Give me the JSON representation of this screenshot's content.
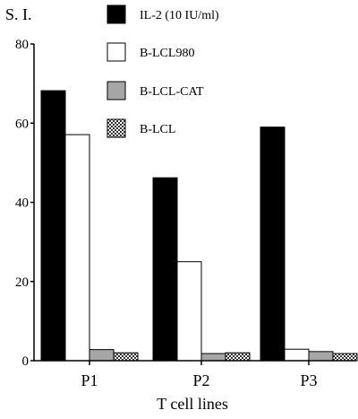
{
  "chart_data": {
    "type": "bar",
    "title": "",
    "ylabel": "S. I.",
    "xlabel": "T cell lines",
    "categories": [
      "P1",
      "P2",
      "P3"
    ],
    "ylim": [
      0,
      80
    ],
    "yticks": [
      0,
      20,
      40,
      60,
      80
    ],
    "grid": false,
    "legend_position": "top",
    "series": [
      {
        "name": "IL-2 (10 IU/ml)",
        "fill": "#000000",
        "pattern": "solid",
        "values": [
          68.2,
          46.2,
          59.0
        ]
      },
      {
        "name": "B-LCL980",
        "fill": "#ffffff",
        "pattern": "solid",
        "values": [
          57.1,
          25.0,
          2.9
        ]
      },
      {
        "name": "B-LCL-CAT",
        "fill": "#a6a6a6",
        "pattern": "solid",
        "values": [
          2.8,
          1.8,
          2.3
        ]
      },
      {
        "name": "B-LCL",
        "fill": "#ffffff",
        "pattern": "checker",
        "values": [
          2.0,
          2.0,
          1.8
        ]
      }
    ]
  }
}
